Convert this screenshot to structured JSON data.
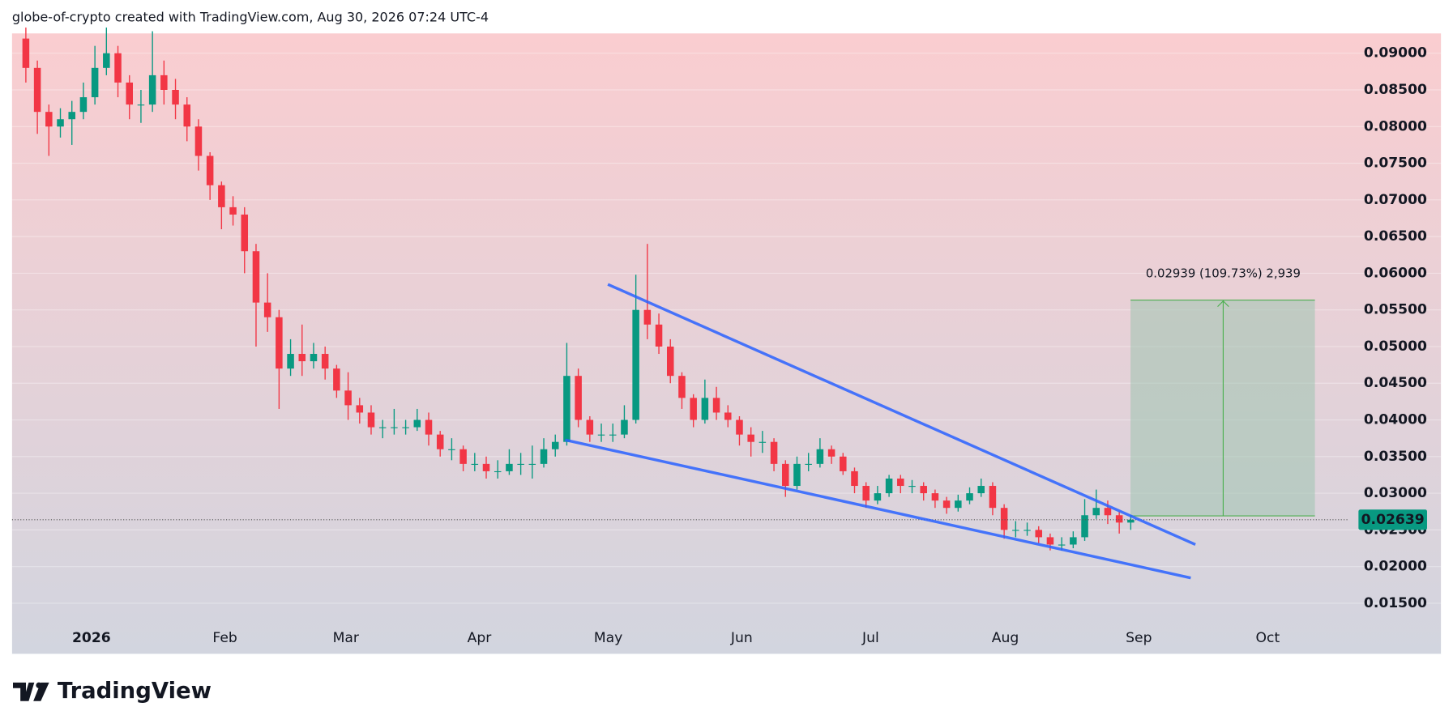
{
  "header": "globe-of-crypto created with TradingView.com, Aug 30, 2026 07:24 UTC-4",
  "footer": "TradingView",
  "chart_data": {
    "type": "candlestick",
    "series": [
      {
        "up_color": "#089981",
        "down_color": "#f23645",
        "open": [
          0.092,
          0.088,
          0.082,
          0.08,
          0.081,
          0.082,
          0.084,
          0.088,
          0.09,
          0.086,
          0.083,
          0.083,
          0.087,
          0.085,
          0.083,
          0.08,
          0.076,
          0.072,
          0.069,
          0.068,
          0.063,
          0.056,
          0.054,
          0.047,
          0.049,
          0.048,
          0.049,
          0.047,
          0.044,
          0.042,
          0.041,
          0.039,
          0.039,
          0.039,
          0.039,
          0.04,
          0.038,
          0.036,
          0.036,
          0.034,
          0.034,
          0.033,
          0.033,
          0.034,
          0.034,
          0.034,
          0.036,
          0.037,
          0.046,
          0.04,
          0.038,
          0.038,
          0.038,
          0.04,
          0.055,
          0.053,
          0.05,
          0.046,
          0.043,
          0.04,
          0.043,
          0.041,
          0.04,
          0.038,
          0.037,
          0.037,
          0.034,
          0.031,
          0.034,
          0.034,
          0.036,
          0.035,
          0.033,
          0.031,
          0.029,
          0.03,
          0.032,
          0.031,
          0.031,
          0.03,
          0.029,
          0.028,
          0.029,
          0.03,
          0.031,
          0.028,
          0.025,
          0.025,
          0.025,
          0.024,
          0.023,
          0.023,
          0.024,
          0.027,
          0.028,
          0.027,
          0.026
        ],
        "high": [
          0.0935,
          0.089,
          0.083,
          0.0825,
          0.0835,
          0.086,
          0.091,
          0.0935,
          0.091,
          0.087,
          0.085,
          0.093,
          0.089,
          0.0865,
          0.084,
          0.081,
          0.0765,
          0.0725,
          0.0705,
          0.069,
          0.064,
          0.06,
          0.055,
          0.051,
          0.053,
          0.0505,
          0.05,
          0.0475,
          0.0465,
          0.043,
          0.042,
          0.04,
          0.0415,
          0.04,
          0.0415,
          0.041,
          0.0385,
          0.0375,
          0.0365,
          0.0355,
          0.035,
          0.0345,
          0.036,
          0.0355,
          0.0365,
          0.0375,
          0.038,
          0.0505,
          0.047,
          0.0405,
          0.0395,
          0.0395,
          0.042,
          0.0598,
          0.064,
          0.0545,
          0.051,
          0.0465,
          0.0435,
          0.0455,
          0.0445,
          0.042,
          0.0405,
          0.039,
          0.0385,
          0.0375,
          0.0345,
          0.035,
          0.0355,
          0.0375,
          0.0365,
          0.0355,
          0.0335,
          0.0315,
          0.031,
          0.0325,
          0.0325,
          0.0318,
          0.0315,
          0.0305,
          0.0295,
          0.0298,
          0.0308,
          0.032,
          0.0315,
          0.0285,
          0.0262,
          0.026,
          0.0255,
          0.0245,
          0.024,
          0.0248,
          0.0292,
          0.0305,
          0.029,
          0.0275,
          0.027
        ],
        "low": [
          0.086,
          0.079,
          0.076,
          0.0785,
          0.0775,
          0.081,
          0.083,
          0.087,
          0.084,
          0.081,
          0.0805,
          0.082,
          0.083,
          0.081,
          0.078,
          0.074,
          0.07,
          0.066,
          0.0665,
          0.06,
          0.05,
          0.052,
          0.0415,
          0.046,
          0.046,
          0.047,
          0.0455,
          0.043,
          0.04,
          0.0395,
          0.038,
          0.0375,
          0.038,
          0.038,
          0.0385,
          0.0365,
          0.035,
          0.0345,
          0.033,
          0.033,
          0.032,
          0.032,
          0.0325,
          0.0325,
          0.032,
          0.0335,
          0.035,
          0.0365,
          0.039,
          0.037,
          0.037,
          0.037,
          0.0375,
          0.0395,
          0.051,
          0.049,
          0.045,
          0.0415,
          0.039,
          0.0395,
          0.04,
          0.039,
          0.0365,
          0.035,
          0.0355,
          0.033,
          0.0295,
          0.0305,
          0.033,
          0.0335,
          0.034,
          0.0325,
          0.03,
          0.028,
          0.0285,
          0.0295,
          0.03,
          0.03,
          0.029,
          0.028,
          0.0272,
          0.0275,
          0.0285,
          0.0295,
          0.027,
          0.0238,
          0.024,
          0.0242,
          0.0232,
          0.0222,
          0.0222,
          0.0225,
          0.0235,
          0.0265,
          0.0258,
          0.0245,
          0.025
        ],
        "close": [
          0.088,
          0.082,
          0.08,
          0.081,
          0.082,
          0.084,
          0.088,
          0.09,
          0.086,
          0.083,
          0.083,
          0.087,
          0.085,
          0.083,
          0.08,
          0.076,
          0.072,
          0.069,
          0.068,
          0.063,
          0.056,
          0.054,
          0.047,
          0.049,
          0.048,
          0.049,
          0.047,
          0.044,
          0.042,
          0.041,
          0.039,
          0.039,
          0.039,
          0.039,
          0.04,
          0.038,
          0.036,
          0.036,
          0.034,
          0.034,
          0.033,
          0.033,
          0.034,
          0.034,
          0.034,
          0.036,
          0.037,
          0.046,
          0.04,
          0.038,
          0.038,
          0.038,
          0.04,
          0.055,
          0.053,
          0.05,
          0.046,
          0.043,
          0.04,
          0.043,
          0.041,
          0.04,
          0.038,
          0.037,
          0.037,
          0.034,
          0.031,
          0.034,
          0.034,
          0.036,
          0.035,
          0.033,
          0.031,
          0.029,
          0.03,
          0.032,
          0.031,
          0.031,
          0.03,
          0.029,
          0.028,
          0.029,
          0.03,
          0.031,
          0.028,
          0.025,
          0.025,
          0.025,
          0.024,
          0.023,
          0.023,
          0.024,
          0.027,
          0.028,
          0.027,
          0.026,
          0.02639
        ]
      }
    ],
    "xlim": [
      -1.2,
      114.9
    ],
    "xticks": [
      {
        "value": 5.7,
        "label": "2026"
      },
      {
        "value": 17.3,
        "label": "Feb"
      },
      {
        "value": 27.8,
        "label": "Mar"
      },
      {
        "value": 39.4,
        "label": "Apr"
      },
      {
        "value": 50.6,
        "label": "May"
      },
      {
        "value": 62.2,
        "label": "Jun"
      },
      {
        "value": 73.4,
        "label": "Jul"
      },
      {
        "value": 85.1,
        "label": "Aug"
      },
      {
        "value": 96.7,
        "label": "Sep"
      },
      {
        "value": 107.9,
        "label": "Oct"
      }
    ],
    "ylim": [
      0.0081,
      0.0927
    ],
    "yticks": [
      {
        "value": 0.015,
        "label": "0.01500"
      },
      {
        "value": 0.02,
        "label": "0.02000"
      },
      {
        "value": 0.025,
        "label": "0.02500"
      },
      {
        "value": 0.03,
        "label": "0.03000"
      },
      {
        "value": 0.035,
        "label": "0.03500"
      },
      {
        "value": 0.04,
        "label": "0.04000"
      },
      {
        "value": 0.045,
        "label": "0.04500"
      },
      {
        "value": 0.05,
        "label": "0.05000"
      },
      {
        "value": 0.055,
        "label": "0.05500"
      },
      {
        "value": 0.06,
        "label": "0.06000"
      },
      {
        "value": 0.065,
        "label": "0.06500"
      },
      {
        "value": 0.07,
        "label": "0.07000"
      },
      {
        "value": 0.075,
        "label": "0.07500"
      },
      {
        "value": 0.08,
        "label": "0.08000"
      },
      {
        "value": 0.085,
        "label": "0.08500"
      },
      {
        "value": 0.09,
        "label": "0.09000"
      }
    ],
    "grid": true,
    "annotation": "0.02939 (109.73%) 2,939"
  }
}
